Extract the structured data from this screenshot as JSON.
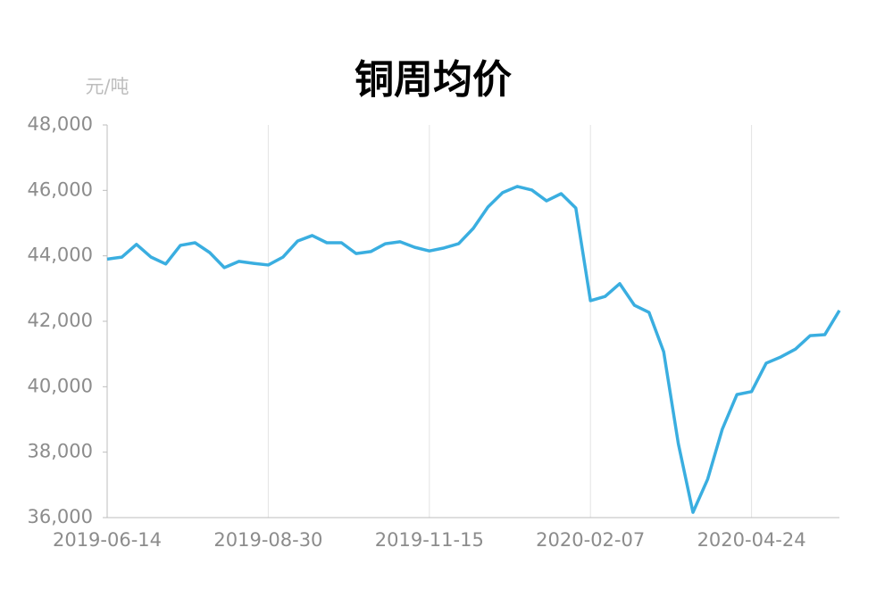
{
  "chart_data": {
    "type": "line",
    "title": "铜周均价",
    "y_unit": "元/吨",
    "categories": [
      "2019-06-14",
      null,
      null,
      null,
      null,
      null,
      null,
      null,
      null,
      null,
      null,
      "2019-08-30",
      null,
      null,
      null,
      null,
      null,
      null,
      null,
      null,
      null,
      null,
      "2019-11-15",
      null,
      null,
      null,
      null,
      null,
      null,
      null,
      null,
      null,
      null,
      "2020-02-07",
      null,
      null,
      null,
      null,
      null,
      null,
      null,
      null,
      null,
      null,
      "2020-04-24",
      null,
      null,
      null,
      null,
      null,
      null
    ],
    "series": [
      {
        "color": "#3aaee0",
        "values": [
          43900,
          43960,
          44350,
          43960,
          43750,
          44320,
          44400,
          44100,
          43640,
          43830,
          43770,
          43720,
          43960,
          44450,
          44620,
          44400,
          44400,
          44070,
          44130,
          44370,
          44430,
          44260,
          44150,
          44240,
          44370,
          44840,
          45490,
          45930,
          46120,
          46010,
          45680,
          45900,
          45460,
          42630,
          42760,
          43150,
          42490,
          42270,
          41070,
          38260,
          36160,
          37170,
          38700,
          39760,
          39850,
          40720,
          40910,
          41150,
          41560,
          41590,
          42330
        ]
      }
    ],
    "ylim": [
      36000,
      48000
    ],
    "yticks": [
      {
        "value": 36000,
        "label": "36,000"
      },
      {
        "value": 38000,
        "label": "38,000"
      },
      {
        "value": 40000,
        "label": "40,000"
      },
      {
        "value": 42000,
        "label": "42,000"
      },
      {
        "value": 44000,
        "label": "44,000"
      },
      {
        "value": 46000,
        "label": "46,000"
      },
      {
        "value": 48000,
        "label": "48,000"
      }
    ],
    "grid": "x"
  }
}
